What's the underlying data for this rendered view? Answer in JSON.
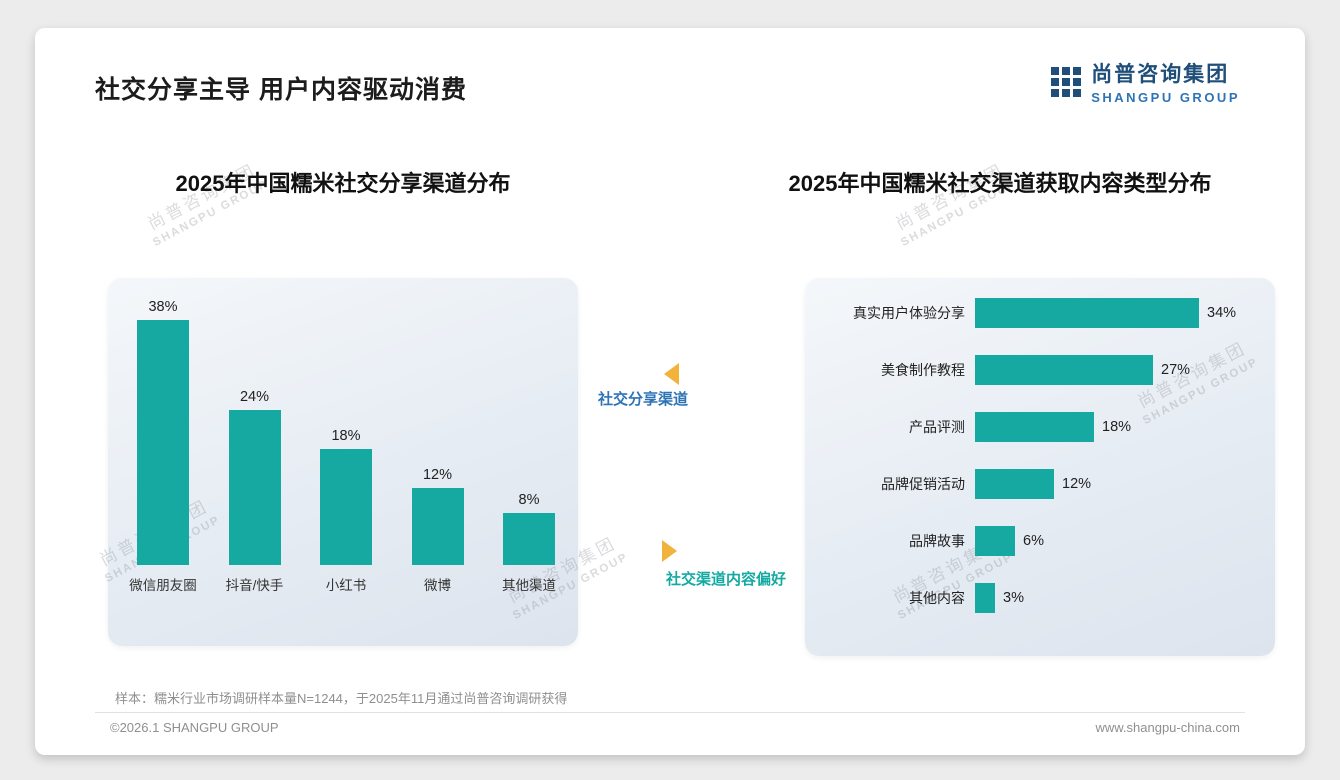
{
  "page": {
    "title": "社交分享主导 用户内容驱动消费",
    "footnote": "样本：糯米行业市场调研样本量N=1244，于2025年11月通过尚普咨询调研获得",
    "copyright": "©2026.1 SHANGPU GROUP",
    "website": "www.shangpu-china.com"
  },
  "logo": {
    "cn": "尚普咨询集团",
    "en": "SHANGPU GROUP"
  },
  "watermark": {
    "cn": "尚普咨询集团",
    "en": "SHANGPU GROUP"
  },
  "annotations": {
    "left_label": "社交分享渠道",
    "right_label": "社交渠道内容偏好"
  },
  "colors": {
    "accent_teal": "#16A9A1",
    "annotation_blue": "#2E74B5",
    "arrow_yellow": "#F2B33D",
    "logo_blue": "#1F4E79"
  },
  "chart_data": [
    {
      "type": "bar",
      "title": "2025年中国糯米社交分享渠道分布",
      "categories": [
        "微信朋友圈",
        "抖音/快手",
        "小红书",
        "微博",
        "其他渠道"
      ],
      "values": [
        38,
        24,
        18,
        12,
        8
      ],
      "unit": "%",
      "ylim": [
        0,
        40
      ],
      "bar_color": "#16A9A1",
      "grid": false,
      "legend": "none"
    },
    {
      "type": "bar",
      "orientation": "horizontal",
      "title": "2025年中国糯米社交渠道获取内容类型分布",
      "categories": [
        "真实用户体验分享",
        "美食制作教程",
        "产品评测",
        "品牌促销活动",
        "品牌故事",
        "其他内容"
      ],
      "values": [
        34,
        27,
        18,
        12,
        6,
        3
      ],
      "unit": "%",
      "xlim": [
        0,
        40
      ],
      "bar_color": "#16A9A1",
      "grid": false,
      "legend": "none"
    }
  ]
}
